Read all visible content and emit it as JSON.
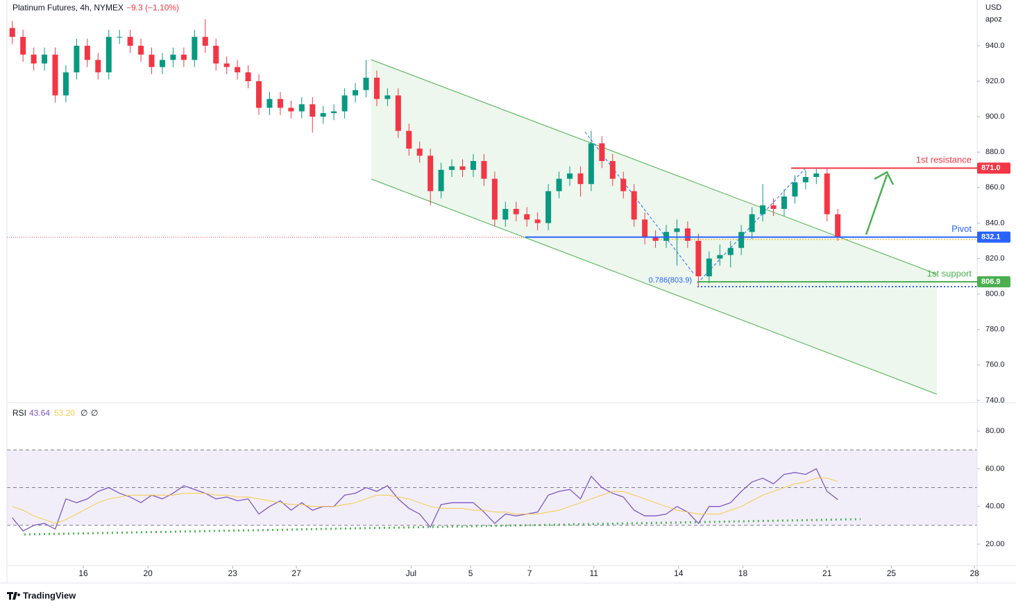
{
  "chart_data": [
    {
      "type": "candlestick",
      "title": "Platinum Futures, 4h, NYMEX",
      "change_label": "−9.3 (−1.10%)",
      "currency": "USD",
      "unit_note": "apoz",
      "up_color": "#089981",
      "down_color": "#f23645",
      "xlim": [
        0,
        362
      ],
      "ylim": [
        738.8,
        965.8
      ],
      "yticks": [
        {
          "value": 740,
          "label": "740.0"
        },
        {
          "value": 760,
          "label": "760.0"
        },
        {
          "value": 780,
          "label": "780.0"
        },
        {
          "value": 800,
          "label": "800.0"
        },
        {
          "value": 820,
          "label": "820.0"
        },
        {
          "value": 840,
          "label": "840.0"
        },
        {
          "value": 860,
          "label": "860.0"
        },
        {
          "value": 880,
          "label": "880.0"
        },
        {
          "value": 900,
          "label": "900.0"
        },
        {
          "value": 920,
          "label": "920.0"
        },
        {
          "value": 940,
          "label": "940.0"
        }
      ],
      "x": [
        2,
        6,
        10,
        14,
        18,
        22,
        26,
        30,
        34,
        38,
        42,
        46,
        50,
        54,
        58,
        62,
        66,
        70,
        74,
        78,
        82,
        86,
        90,
        94,
        98,
        102,
        106,
        110,
        114,
        118,
        122,
        126,
        130,
        134,
        138,
        142,
        146,
        150,
        154,
        158,
        162,
        166,
        170,
        174,
        178,
        182,
        186,
        190,
        194,
        198,
        202,
        206,
        210,
        214,
        218,
        222,
        226,
        230,
        234,
        238,
        242,
        246,
        250,
        254,
        258,
        262,
        266,
        270,
        274,
        278,
        282,
        286,
        290,
        294,
        298,
        302,
        306,
        310
      ],
      "open": [
        950,
        945,
        935,
        930,
        935,
        912,
        925,
        940,
        932,
        925,
        945,
        945,
        940,
        935,
        928,
        932,
        935,
        932,
        945,
        940,
        930,
        928,
        925,
        920,
        905,
        910,
        905,
        903,
        907,
        900,
        902,
        903,
        912,
        915,
        922,
        910,
        912,
        892,
        882,
        878,
        858,
        870,
        872,
        870,
        875,
        865,
        842,
        848,
        845,
        842,
        840,
        858,
        865,
        868,
        862,
        885,
        875,
        865,
        858,
        842,
        832,
        830,
        835,
        837,
        830,
        810,
        820,
        822,
        826,
        835,
        845,
        850,
        848,
        855,
        863,
        866,
        868,
        845
      ],
      "high": [
        954,
        949,
        939,
        939,
        939,
        929,
        944,
        944,
        936,
        949,
        949,
        949,
        944,
        939,
        936,
        939,
        939,
        949,
        955,
        944,
        934,
        932,
        929,
        924,
        914,
        914,
        909,
        911,
        911,
        906,
        907,
        916,
        919,
        932,
        926,
        916,
        916,
        896,
        886,
        882,
        874,
        876,
        876,
        879,
        879,
        869,
        852,
        852,
        849,
        846,
        862,
        869,
        872,
        872,
        892,
        889,
        879,
        869,
        862,
        846,
        836,
        839,
        842,
        841,
        834,
        824,
        828,
        830,
        839,
        849,
        862,
        854,
        859,
        867,
        870,
        871,
        871,
        848
      ],
      "low": [
        941,
        931,
        926,
        926,
        908,
        908,
        921,
        928,
        921,
        921,
        941,
        936,
        931,
        924,
        924,
        928,
        928,
        928,
        936,
        926,
        924,
        921,
        916,
        901,
        901,
        901,
        899,
        899,
        891,
        896,
        898,
        899,
        908,
        911,
        906,
        906,
        888,
        878,
        874,
        850,
        854,
        866,
        866,
        866,
        861,
        838,
        838,
        841,
        838,
        836,
        836,
        854,
        861,
        855,
        858,
        871,
        861,
        854,
        838,
        828,
        826,
        826,
        816,
        826,
        804,
        806,
        816,
        815,
        822,
        831,
        841,
        844,
        844,
        851,
        859,
        862,
        841,
        830
      ],
      "close": [
        945,
        935,
        930,
        935,
        912,
        925,
        940,
        932,
        925,
        945,
        945,
        940,
        935,
        928,
        932,
        935,
        932,
        945,
        940,
        930,
        928,
        925,
        920,
        905,
        910,
        905,
        903,
        907,
        900,
        902,
        903,
        912,
        915,
        922,
        910,
        912,
        892,
        882,
        878,
        858,
        870,
        872,
        870,
        875,
        865,
        842,
        848,
        845,
        842,
        840,
        858,
        865,
        868,
        862,
        885,
        875,
        865,
        858,
        842,
        832,
        830,
        835,
        837,
        830,
        810,
        820,
        822,
        826,
        835,
        845,
        850,
        848,
        855,
        863,
        866,
        868,
        845,
        832
      ],
      "levels": [
        {
          "name": "1st resistance",
          "value": 871,
          "label": "871.0",
          "color": "#f23645"
        },
        {
          "name": "Pivot",
          "value": 832.1,
          "color": "#2962ff"
        },
        {
          "name": "1st support",
          "value": 806.9,
          "color": "#4caf50"
        }
      ],
      "fib_label": "0.786(803.9)"
    },
    {
      "type": "line",
      "title": "RSI",
      "rsi_value": 43.64,
      "ma_value": {
        "value": 53.2,
        "label": "53.20"
      },
      "params": [
        "∅",
        "∅"
      ],
      "xlim": [
        0,
        362
      ],
      "ylim": [
        8.6,
        94
      ],
      "yticks": [
        {
          "value": 20,
          "label": "20.00"
        },
        {
          "value": 40,
          "label": "40.00"
        },
        {
          "value": 60,
          "label": "60.00"
        },
        {
          "value": 80,
          "label": "80.00"
        }
      ],
      "bands": [
        70,
        50,
        30
      ],
      "xticks": [
        {
          "value": 28.5,
          "label": "16"
        },
        {
          "value": 52.6,
          "label": "20"
        },
        {
          "value": 84.2,
          "label": "23"
        },
        {
          "value": 108,
          "label": "27"
        },
        {
          "value": 150.8,
          "label": "Jul"
        },
        {
          "value": 173,
          "label": "5"
        },
        {
          "value": 195,
          "label": "7"
        },
        {
          "value": 219,
          "label": "11"
        },
        {
          "value": 250.6,
          "label": "14"
        },
        {
          "value": 274.6,
          "label": "18"
        },
        {
          "value": 306,
          "label": "21"
        },
        {
          "value": 330,
          "label": "25"
        },
        {
          "value": 361,
          "label": "28"
        }
      ],
      "x": [
        2,
        6,
        10,
        14,
        18,
        22,
        26,
        30,
        34,
        38,
        42,
        46,
        50,
        54,
        58,
        62,
        66,
        70,
        74,
        78,
        82,
        86,
        90,
        94,
        98,
        102,
        106,
        110,
        114,
        118,
        122,
        126,
        130,
        134,
        138,
        142,
        146,
        150,
        154,
        158,
        162,
        166,
        170,
        174,
        178,
        182,
        186,
        190,
        194,
        198,
        202,
        206,
        210,
        214,
        218,
        222,
        226,
        230,
        234,
        238,
        242,
        246,
        250,
        254,
        258,
        262,
        266,
        270,
        274,
        278,
        282,
        286,
        290,
        294,
        298,
        302,
        306,
        310
      ],
      "series": [
        {
          "name": "RSI",
          "color": "#7e57c2",
          "values": [
            34,
            27,
            30,
            31,
            28,
            44,
            42,
            44,
            48,
            50,
            47,
            45,
            42,
            46,
            44,
            47,
            51,
            49,
            47,
            44,
            45,
            43,
            44,
            36,
            40,
            43,
            38,
            42,
            38,
            40,
            40,
            46,
            47,
            50,
            48,
            51,
            44,
            39,
            36,
            29,
            41,
            42,
            42,
            42,
            37,
            31,
            36,
            35,
            36,
            37,
            46,
            48,
            49,
            44,
            56,
            50,
            47,
            45,
            38,
            35,
            35,
            36,
            40,
            37,
            31,
            40,
            40,
            42,
            48,
            53,
            55,
            52,
            57,
            58,
            57,
            60,
            48,
            43.64
          ]
        },
        {
          "name": "RSI MA",
          "color": "#f7c948",
          "values": [
            40,
            38,
            35,
            33,
            31,
            33,
            36,
            39,
            42,
            44,
            45,
            46,
            46,
            46,
            46,
            46,
            47,
            47,
            47,
            46,
            46,
            45,
            45,
            44,
            43,
            42,
            41,
            41,
            40,
            40,
            40,
            41,
            42,
            44,
            46,
            46,
            45,
            44,
            42,
            40,
            39,
            39,
            39,
            38,
            38,
            37,
            37,
            36,
            36,
            36,
            37,
            38,
            40,
            42,
            44,
            46,
            48,
            48,
            46,
            44,
            42,
            40,
            38,
            37,
            36,
            36,
            36,
            38,
            40,
            43,
            46,
            48,
            50,
            52,
            53,
            55,
            55,
            53.2
          ]
        }
      ]
    },
    {
      "type": "brand",
      "brand": "TradingView"
    }
  ]
}
